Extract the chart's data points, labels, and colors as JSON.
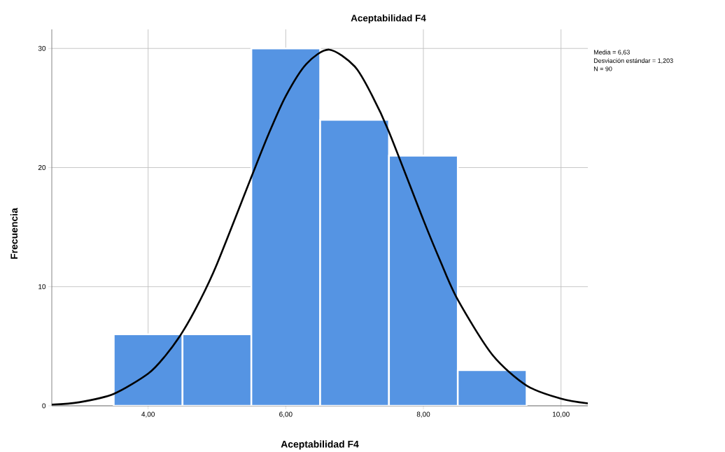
{
  "chart_data": {
    "type": "histogram",
    "title": "Aceptabilidad  F4",
    "xlabel": "Aceptabilidad  F4",
    "ylabel": "Frecuencia",
    "annotations": [
      "Media = 6,63",
      "Desviación estándar = 1,203",
      "N = 90"
    ],
    "series": [
      {
        "bins": [
          3.5,
          4.5,
          5.5,
          6.5,
          7.5,
          8.5,
          9.5
        ],
        "values": [
          6,
          6,
          30,
          24,
          21,
          3
        ],
        "color": "#5594e3"
      },
      {
        "type": "line",
        "x": [
          2.6,
          3.0,
          3.5,
          4.0,
          4.25,
          4.5,
          4.75,
          5.0,
          5.5,
          5.75,
          6.0,
          6.3,
          6.63,
          7.0,
          7.25,
          7.5,
          8.0,
          8.25,
          8.5,
          9.0,
          9.5,
          10.0,
          10.39
        ],
        "values": [
          0.1,
          0.3,
          1.0,
          2.7,
          4.2,
          6.2,
          8.8,
          11.9,
          19.2,
          22.8,
          26.0,
          28.7,
          29.9,
          28.5,
          26.1,
          23.0,
          15.6,
          12.1,
          8.9,
          4.3,
          1.7,
          0.6,
          0.2
        ],
        "color": "#000000"
      }
    ],
    "xlim": [
      2.6,
      10.39
    ],
    "ylim": [
      0,
      31.6
    ],
    "xticks": [
      {
        "value": 4,
        "label": "4,00"
      },
      {
        "value": 6,
        "label": "6,00"
      },
      {
        "value": 8,
        "label": "8,00"
      },
      {
        "value": 10,
        "label": "10,00"
      }
    ],
    "yticks": [
      0,
      10,
      20,
      30
    ],
    "grid": true
  }
}
